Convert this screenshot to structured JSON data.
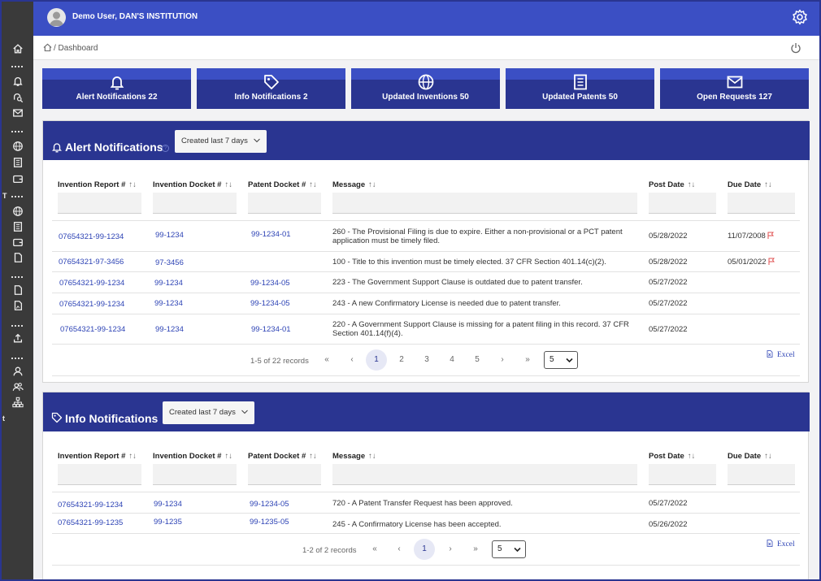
{
  "header": {
    "user": "Demo User, DAN'S INSTITUTION"
  },
  "breadcrumb": {
    "text": "/ Dashboard"
  },
  "sidebar": {
    "marker": "T",
    "marker2": "t"
  },
  "tiles": [
    {
      "label": "Alert Notifications 22",
      "icon": "bell-icon"
    },
    {
      "label": "Info Notifications 2",
      "icon": "tag-icon"
    },
    {
      "label": "Updated Inventions 50",
      "icon": "globe-icon"
    },
    {
      "label": "Updated Patents 50",
      "icon": "book-icon"
    },
    {
      "label": "Open Requests 127",
      "icon": "mail-icon"
    }
  ],
  "columns": {
    "invention_report": "Invention Report #",
    "invention_docket": "Invention Docket #",
    "patent_docket": "Patent Docket #",
    "message": "Message",
    "post_date": "Post Date",
    "due_date": "Due Date",
    "sort_glyph": "↑↓"
  },
  "alerts": {
    "title": "Alert Notifications",
    "info_glyph": "?",
    "filter": "Created last 7 days",
    "rows": [
      {
        "report": "07654321-99-1234",
        "inv_docket": "99-1234",
        "pat_docket": "99-1234-01",
        "message": "260 - The Provisional Filing is due to expire. Either a non-provisional or a PCT patent application must be timely filed.",
        "post": "05/28/2022",
        "due": "11/07/2008",
        "flag": true
      },
      {
        "report": "07654321-97-3456",
        "inv_docket": "97-3456",
        "pat_docket": "",
        "message": "100 - Title to this invention must be timely elected. 37 CFR Section 401.14(c)(2).",
        "post": "05/28/2022",
        "due": "05/01/2022",
        "flag": true
      },
      {
        "report": "07654321-99-1234",
        "inv_docket": "99-1234",
        "pat_docket": "99-1234-05",
        "message": "223 - The Government Support Clause is outdated due to patent transfer.",
        "post": "05/27/2022",
        "due": "",
        "flag": false
      },
      {
        "report": "07654321-99-1234",
        "inv_docket": "99-1234",
        "pat_docket": "99-1234-05",
        "message": "243 - A new Confirmatory License is needed due to patent transfer.",
        "post": "05/27/2022",
        "due": "",
        "flag": false
      },
      {
        "report": "07654321-99-1234",
        "inv_docket": "99-1234",
        "pat_docket": "99-1234-01",
        "message": "220 - A Government Support Clause is missing for a patent filing in this record. 37 CFR Section 401.14(f)(4).",
        "post": "05/27/2022",
        "due": "",
        "flag": false
      }
    ],
    "pager": {
      "summary": "1-5 of 22 records",
      "first": "«",
      "prev": "‹",
      "pages": [
        "1",
        "2",
        "3",
        "4",
        "5"
      ],
      "next": "›",
      "last": "»",
      "page_size": "5"
    },
    "excel": "Excel"
  },
  "info": {
    "title": "Info Notifications",
    "filter": "Created last 7 days",
    "rows": [
      {
        "report": "07654321-99-1234",
        "inv_docket": "99-1234",
        "pat_docket": "99-1234-05",
        "message": "720 - A Patent Transfer Request has been approved.",
        "post": "05/27/2022",
        "due": ""
      },
      {
        "report": "07654321-99-1235",
        "inv_docket": "99-1235",
        "pat_docket": "99-1235-05",
        "message": "245 - A Confirmatory License has been accepted.",
        "post": "05/26/2022",
        "due": ""
      }
    ],
    "pager": {
      "summary": "1-2 of 2 records",
      "first": "«",
      "prev": "‹",
      "pages": [
        "1"
      ],
      "next": "›",
      "last": "»",
      "page_size": "5"
    },
    "excel": "Excel"
  },
  "colors": {
    "brand": "#2a3591",
    "header": "#3b4fc4",
    "sidebar": "#3a3a3a",
    "link": "#2d43b5",
    "flag": "#e05050"
  }
}
